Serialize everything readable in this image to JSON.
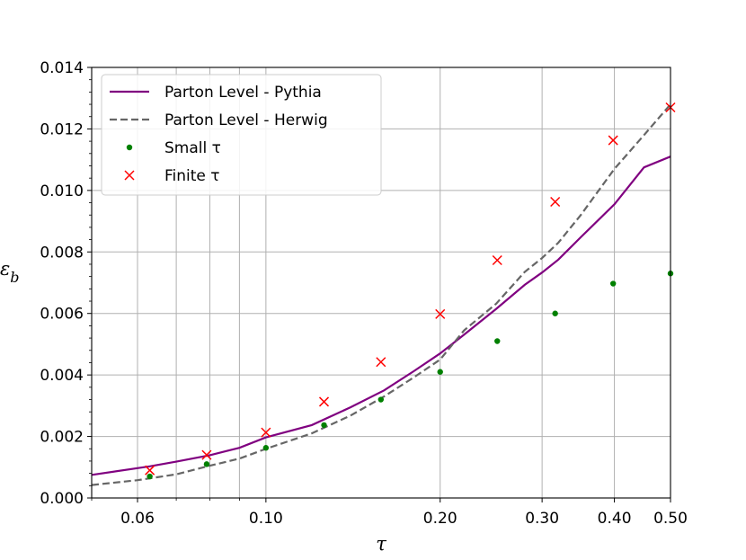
{
  "chart_data": {
    "type": "line",
    "xlabel": "τ",
    "ylabel": "ε_b",
    "xscale": "log",
    "xlim": [
      0.05,
      0.5
    ],
    "ylim": [
      0,
      0.014
    ],
    "grid": true,
    "legend_position": "top-left",
    "x_ticks": [
      0.06,
      0.1,
      0.2,
      0.3,
      0.4,
      0.5
    ],
    "x_tick_labels": [
      "0.06",
      "0.10",
      "0.20",
      "0.30",
      "0.40",
      "0.50"
    ],
    "y_ticks": [
      0,
      0.002,
      0.004,
      0.006,
      0.008,
      0.01,
      0.012,
      0.014
    ],
    "y_tick_labels": [
      "0.000",
      "0.002",
      "0.004",
      "0.006",
      "0.008",
      "0.010",
      "0.012",
      "0.014"
    ],
    "series": [
      {
        "name": "Parton Level - Pythia",
        "kind": "line",
        "color": "#800080",
        "style": "solid",
        "x": [
          0.05,
          0.06,
          0.063,
          0.07,
          0.08,
          0.09,
          0.1,
          0.12,
          0.14,
          0.16,
          0.18,
          0.2,
          0.22,
          0.25,
          0.28,
          0.3,
          0.32,
          0.35,
          0.4,
          0.45,
          0.5
        ],
        "y": [
          0.00075,
          0.00097,
          0.00103,
          0.00118,
          0.00139,
          0.00163,
          0.00197,
          0.00237,
          0.00295,
          0.0035,
          0.00412,
          0.0047,
          0.00531,
          0.00615,
          0.00693,
          0.00733,
          0.00775,
          0.00848,
          0.00955,
          0.01075,
          0.0111
        ]
      },
      {
        "name": "Parton Level - Herwig",
        "kind": "line",
        "color": "#666666",
        "style": "dashed",
        "x": [
          0.05,
          0.06,
          0.07,
          0.08,
          0.09,
          0.1,
          0.12,
          0.14,
          0.16,
          0.18,
          0.2,
          0.22,
          0.25,
          0.28,
          0.3,
          0.32,
          0.35,
          0.4,
          0.45,
          0.5
        ],
        "y": [
          0.00042,
          0.00058,
          0.00077,
          0.00105,
          0.00128,
          0.0016,
          0.0021,
          0.00268,
          0.0033,
          0.00392,
          0.0045,
          0.00545,
          0.00632,
          0.00735,
          0.0078,
          0.0083,
          0.0092,
          0.0107,
          0.0118,
          0.0128
        ]
      },
      {
        "name": "Small τ",
        "kind": "scatter",
        "marker": "dot",
        "color": "#008000",
        "x": [
          0.063,
          0.079,
          0.1,
          0.126,
          0.158,
          0.2,
          0.251,
          0.316,
          0.398,
          0.5
        ],
        "y": [
          0.0007,
          0.0011,
          0.00163,
          0.00237,
          0.0032,
          0.0041,
          0.0051,
          0.006,
          0.00697,
          0.0073
        ]
      },
      {
        "name": "Finite τ",
        "kind": "scatter",
        "marker": "x",
        "color": "#ff0000",
        "x": [
          0.063,
          0.079,
          0.1,
          0.126,
          0.158,
          0.2,
          0.251,
          0.316,
          0.398,
          0.5
        ],
        "y": [
          0.0009,
          0.0014,
          0.00213,
          0.00313,
          0.00442,
          0.00598,
          0.00773,
          0.00963,
          0.01163,
          0.0127
        ]
      }
    ]
  }
}
